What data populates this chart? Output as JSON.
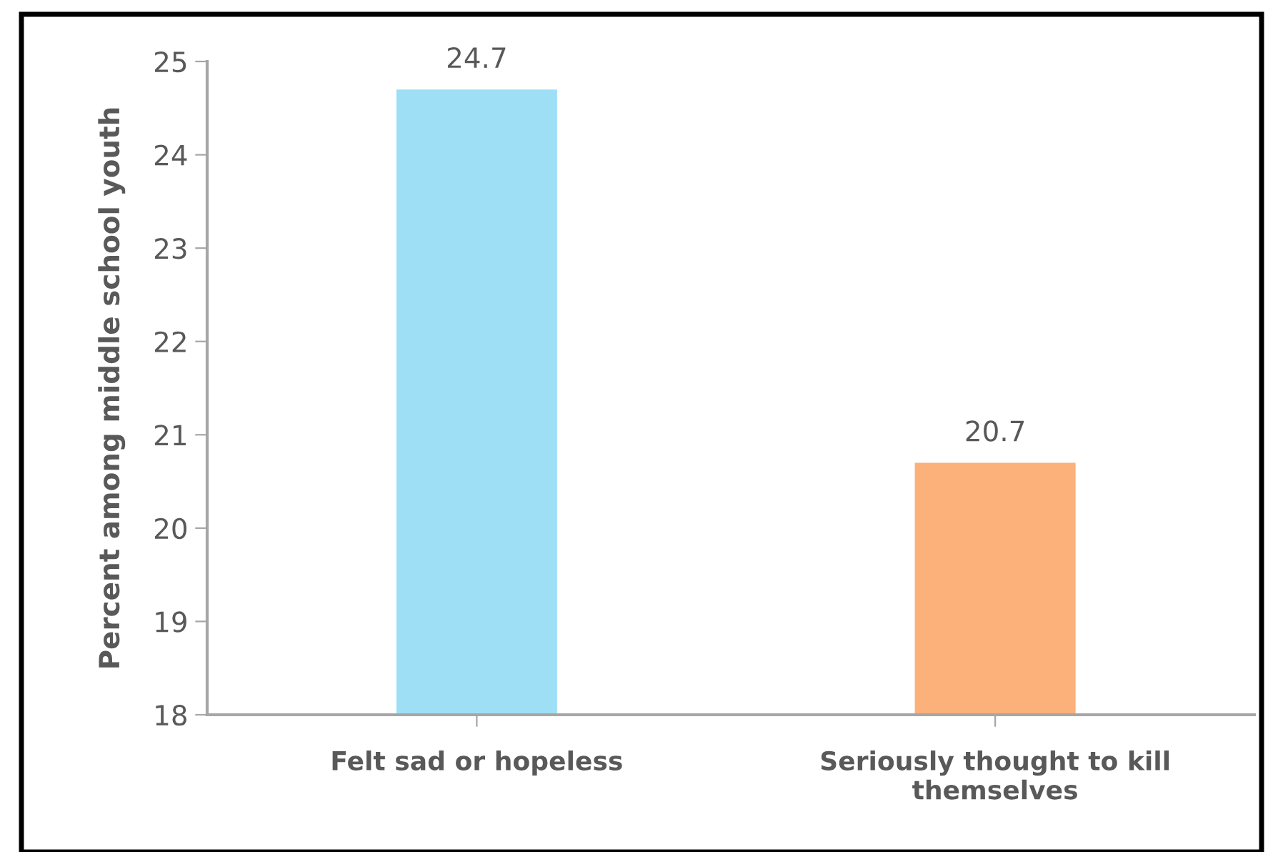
{
  "chart_data": {
    "type": "bar",
    "ylabel": "Percent among middle school youth",
    "categories": [
      "Felt sad or hopeless",
      "Seriously thought to kill\nthemselves"
    ],
    "values": [
      24.7,
      20.7
    ],
    "colors": [
      "#9edff5",
      "#fcb07a"
    ],
    "ylim": [
      18,
      25
    ],
    "yticks": [
      18,
      19,
      20,
      21,
      22,
      23,
      24,
      25
    ],
    "data_labels": true,
    "grid": false,
    "legend": false
  }
}
